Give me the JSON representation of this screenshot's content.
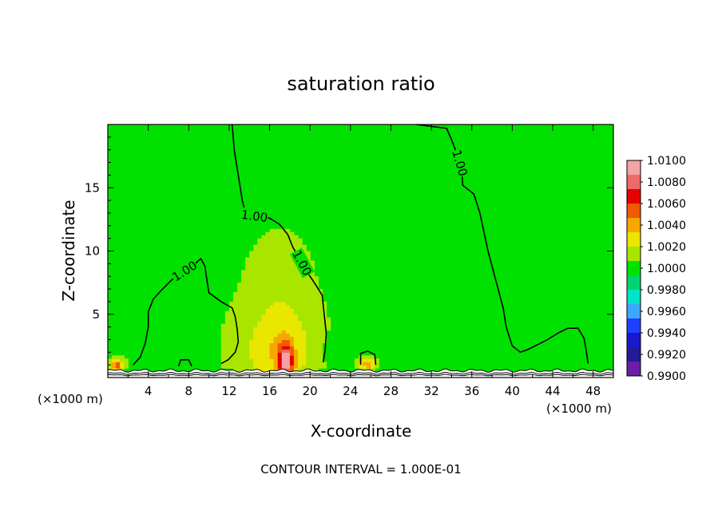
{
  "chart_data": {
    "type": "heatmap",
    "title": "saturation ratio",
    "xlabel": "X-coordinate",
    "ylabel": "Z-coordinate",
    "x_unit": "(×1000 m)",
    "y_unit": "(×1000 m)",
    "xlim": [
      0,
      50
    ],
    "ylim": [
      0,
      20
    ],
    "x_ticks": [
      4,
      8,
      12,
      16,
      20,
      24,
      28,
      32,
      36,
      40,
      44,
      48
    ],
    "y_ticks": [
      5,
      10,
      15
    ],
    "footer": "CONTOUR INTERVAL = 1.000E-01",
    "background_value": 1.0005,
    "colorbar": {
      "labels": [
        "1.0100",
        "1.0080",
        "1.0060",
        "1.0040",
        "1.0020",
        "1.0000",
        "0.9980",
        "0.9960",
        "0.9940",
        "0.9920",
        "0.9900"
      ],
      "colors": [
        "#f3a3a3",
        "#ee6a6a",
        "#e60000",
        "#f05a00",
        "#f9a600",
        "#e9e600",
        "#a8e600",
        "#00e100",
        "#00d46e",
        "#00e3c8",
        "#3aa8ff",
        "#2040ff",
        "#1a18cc",
        "#231a96",
        "#6a1ea6"
      ]
    },
    "contour_label": "1.00",
    "contours": [
      {
        "value": 1.0,
        "points": [
          [
            12.3,
            20
          ],
          [
            12.5,
            18
          ],
          [
            12.7,
            17
          ],
          [
            12.9,
            16
          ],
          [
            13.1,
            15
          ],
          [
            13.3,
            14
          ],
          [
            13.6,
            13
          ],
          [
            14.0,
            12.8
          ],
          [
            15.0,
            12.7
          ],
          [
            16.0,
            12.6
          ],
          [
            17.0,
            12.1
          ],
          [
            17.8,
            11.3
          ],
          [
            18.3,
            10.3
          ],
          [
            18.9,
            9.5
          ],
          [
            19.5,
            8.6
          ],
          [
            20.5,
            7.4
          ],
          [
            21.2,
            6.5
          ],
          [
            21.4,
            5.0
          ],
          [
            21.6,
            3.5
          ],
          [
            21.5,
            2.2
          ],
          [
            21.3,
            1.2
          ]
        ]
      },
      {
        "value": 1.0,
        "points": [
          [
            30.5,
            20
          ],
          [
            33.5,
            19.7
          ],
          [
            34.0,
            18.8
          ],
          [
            34.6,
            17.5
          ],
          [
            35.0,
            16.4
          ],
          [
            35.1,
            15.2
          ],
          [
            36.2,
            14.5
          ],
          [
            36.8,
            13.0
          ],
          [
            37.2,
            11.5
          ],
          [
            37.6,
            10.0
          ],
          [
            38.1,
            8.5
          ],
          [
            38.6,
            7.0
          ],
          [
            39.1,
            5.5
          ],
          [
            39.4,
            4.0
          ],
          [
            40.0,
            2.5
          ],
          [
            40.8,
            2.0
          ],
          [
            41.5,
            2.2
          ],
          [
            42.5,
            2.6
          ],
          [
            43.5,
            3.0
          ],
          [
            44.5,
            3.5
          ],
          [
            45.5,
            3.9
          ],
          [
            46.5,
            3.9
          ],
          [
            47.1,
            3.1
          ],
          [
            47.3,
            2.2
          ],
          [
            47.5,
            1.1
          ]
        ]
      },
      {
        "value": 1.0,
        "points": [
          [
            2.5,
            1.0
          ],
          [
            3.2,
            1.6
          ],
          [
            3.7,
            2.7
          ],
          [
            4.0,
            4.0
          ],
          [
            4.0,
            5.2
          ],
          [
            4.5,
            6.2
          ],
          [
            5.3,
            6.9
          ],
          [
            6.3,
            7.7
          ],
          [
            7.0,
            8.1
          ],
          [
            8.2,
            8.7
          ],
          [
            9.2,
            9.4
          ],
          [
            9.6,
            8.8
          ],
          [
            9.8,
            7.7
          ],
          [
            10.0,
            6.7
          ],
          [
            11.2,
            6.0
          ],
          [
            12.3,
            5.5
          ],
          [
            12.6,
            4.8
          ],
          [
            12.8,
            3.8
          ],
          [
            12.9,
            2.8
          ],
          [
            12.6,
            2.0
          ],
          [
            11.9,
            1.4
          ],
          [
            11.2,
            1.1
          ]
        ]
      },
      {
        "value": 1.0,
        "points": [
          [
            25.0,
            1.0
          ],
          [
            25.0,
            1.9
          ],
          [
            25.7,
            2.1
          ],
          [
            26.4,
            1.8
          ],
          [
            26.5,
            1.0
          ]
        ]
      },
      {
        "value": 1.0,
        "points": [
          [
            7.0,
            0.9
          ],
          [
            7.2,
            1.4
          ],
          [
            8.0,
            1.4
          ],
          [
            8.3,
            0.9
          ]
        ]
      }
    ],
    "anomalies": [
      {
        "x": 17.0,
        "z": 2.2,
        "sx": 3.5,
        "sz": 3.6,
        "amp": 0.003
      },
      {
        "x": 17.6,
        "z": 1.3,
        "sx": 0.7,
        "sz": 1.3,
        "amp": 0.0075
      },
      {
        "x": 17.0,
        "z": 8.0,
        "sx": 2.6,
        "sz": 3.0,
        "amp": 0.0008
      },
      {
        "x": 0.9,
        "z": 1.0,
        "sx": 0.6,
        "sz": 0.4,
        "amp": 0.0055
      },
      {
        "x": 25.7,
        "z": 1.1,
        "sx": 1.0,
        "sz": 0.6,
        "amp": 0.0042
      },
      {
        "x": 29.0,
        "z": 4.5,
        "sx": 5.0,
        "sz": 4.0,
        "amp": -0.0008
      },
      {
        "x": 35.0,
        "z": 5.0,
        "sx": 4.0,
        "sz": 3.0,
        "amp": -0.0006
      },
      {
        "x": 24.0,
        "z": 2.0,
        "sx": 5.0,
        "sz": 1.5,
        "amp": -0.0006
      },
      {
        "x": 25.0,
        "z": 0.3,
        "sx": 20.0,
        "sz": 0.25,
        "amp": -0.0018
      },
      {
        "x": 40.0,
        "z": 0.4,
        "sx": 10.0,
        "sz": 0.3,
        "amp": -0.0012
      }
    ],
    "surface_line_z": 0.55
  }
}
